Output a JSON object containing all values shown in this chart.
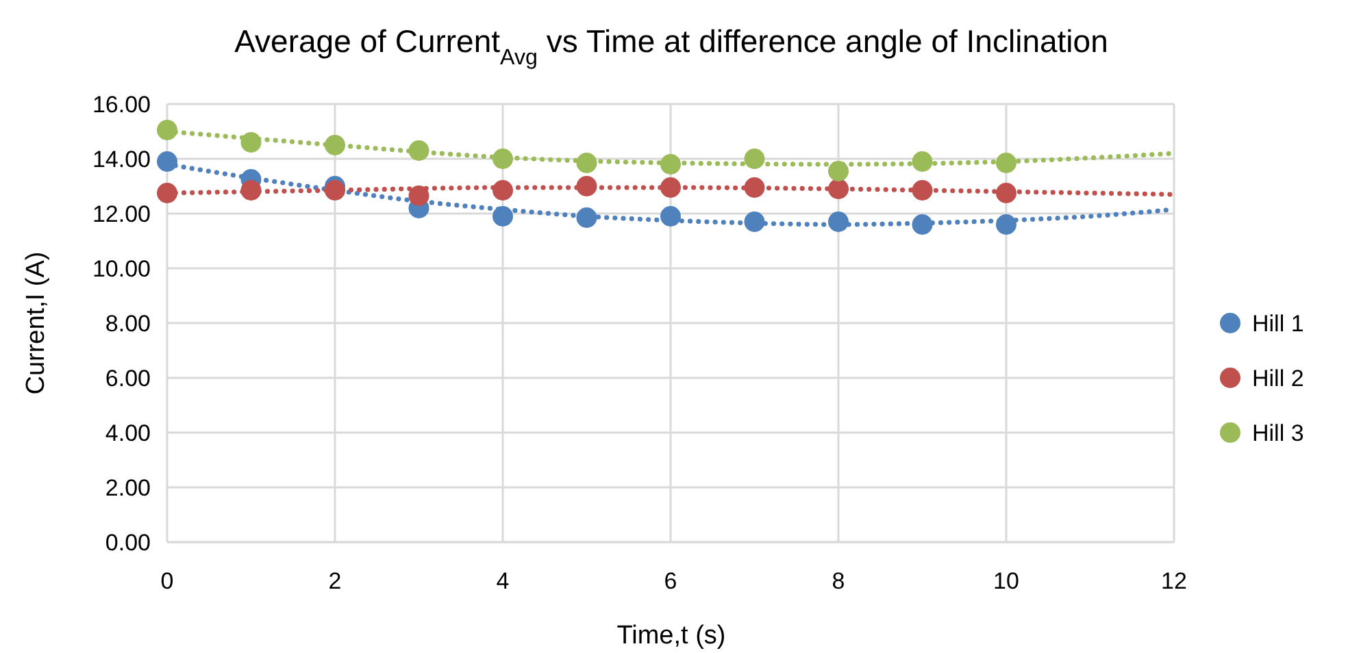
{
  "chart_data": {
    "type": "scatter",
    "title": "Average of Current$_{Avg}$ vs Time at difference angle of Inclination",
    "xlabel": "Time,t (s)",
    "ylabel": "Current,I (A)",
    "x": [
      0,
      1,
      2,
      3,
      4,
      5,
      6,
      7,
      8,
      9,
      10
    ],
    "series": [
      {
        "name": "Hill 1",
        "color": "#4f81bd",
        "values": [
          13.9,
          13.25,
          13.0,
          12.2,
          11.9,
          11.85,
          11.9,
          11.7,
          11.7,
          11.6,
          11.6
        ]
      },
      {
        "name": "Hill 2",
        "color": "#c0504d",
        "values": [
          12.75,
          12.85,
          12.85,
          12.65,
          12.85,
          13.0,
          12.95,
          12.95,
          12.9,
          12.85,
          12.75
        ]
      },
      {
        "name": "Hill 3",
        "color": "#9bbb59",
        "values": [
          15.05,
          14.6,
          14.5,
          14.3,
          14.0,
          13.85,
          13.8,
          14.0,
          13.55,
          13.9,
          13.85
        ]
      },
      {
        "type": "line",
        "color": "#4f81bd",
        "line_style": "dotted",
        "marker": "none",
        "x": [
          0,
          1,
          2,
          3,
          4,
          5,
          6,
          7,
          8,
          9,
          10,
          11,
          12
        ],
        "values": [
          13.8,
          13.3,
          12.85,
          12.45,
          12.15,
          11.9,
          11.75,
          11.65,
          11.6,
          11.65,
          11.75,
          11.9,
          12.15
        ]
      },
      {
        "type": "line",
        "color": "#c0504d",
        "line_style": "dotted",
        "marker": "none",
        "x": [
          0,
          2,
          4,
          6,
          8,
          10,
          12
        ],
        "values": [
          12.75,
          12.85,
          12.95,
          12.95,
          12.9,
          12.8,
          12.7
        ]
      },
      {
        "type": "line",
        "color": "#9bbb59",
        "line_style": "dotted",
        "marker": "none",
        "x": [
          0,
          2,
          4,
          6,
          8,
          10,
          12
        ],
        "values": [
          15.0,
          14.5,
          14.05,
          13.85,
          13.8,
          13.9,
          14.2
        ]
      }
    ],
    "xlim": [
      0,
      12
    ],
    "xticks": [
      0,
      2,
      4,
      6,
      8,
      10,
      12
    ],
    "ylim": [
      0,
      16
    ],
    "yticks": [
      {
        "value": 0,
        "label": "0.00"
      },
      {
        "value": 2,
        "label": "2.00"
      },
      {
        "value": 4,
        "label": "4.00"
      },
      {
        "value": 6,
        "label": "6.00"
      },
      {
        "value": 8,
        "label": "8.00"
      },
      {
        "value": 10,
        "label": "10.00"
      },
      {
        "value": 12,
        "label": "12.00"
      },
      {
        "value": 14,
        "label": "14.00"
      },
      {
        "value": 16,
        "label": "16.00"
      }
    ],
    "grid": true,
    "legend": "right",
    "marker": "circle"
  }
}
